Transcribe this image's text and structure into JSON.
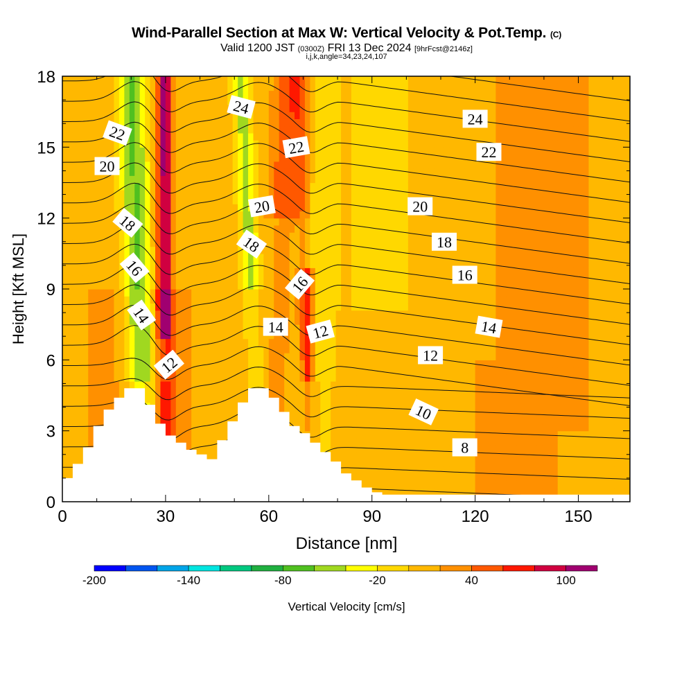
{
  "header": {
    "title": "Wind-Parallel Section at Max W: Vertical Velocity & Pot.Temp.",
    "copyright": "(C)",
    "valid_prefix": "Valid 1200 JST",
    "valid_utc": "(0300Z)",
    "valid_date": "FRI 13 Dec 2024",
    "forecast_tag": "[9hrFcst@2146z]",
    "ijk_line": "i,j,k,angle=34,23,24,107"
  },
  "chart_data": {
    "type": "heatmap",
    "xlabel": "Distance [nm]",
    "ylabel": "Height [Kft MSL]",
    "xlim": [
      0,
      165
    ],
    "ylim": [
      0,
      18
    ],
    "x_ticks": [
      0,
      30,
      60,
      90,
      120,
      150
    ],
    "y_ticks": [
      0,
      3,
      6,
      9,
      12,
      15,
      18
    ],
    "colorbar": {
      "label": "Vertical Velocity [cm/s]",
      "tick_labels": [
        "-200",
        "-140",
        "-80",
        "-20",
        "40",
        "100"
      ],
      "tick_values": [
        -200,
        -140,
        -80,
        -20,
        40,
        100
      ],
      "boundaries": [
        -200,
        -180,
        -160,
        -140,
        -120,
        -100,
        -80,
        -60,
        -40,
        -20,
        0,
        20,
        40,
        60,
        80,
        100,
        120
      ],
      "colors": [
        "#0000ff",
        "#0055f0",
        "#00a5e8",
        "#00e5e0",
        "#00c880",
        "#20b040",
        "#50c020",
        "#a0d820",
        "#ffff00",
        "#ffd800",
        "#ffb800",
        "#ff9000",
        "#ff5800",
        "#ff1800",
        "#d00040",
        "#a00070",
        "#6000a0"
      ]
    },
    "theta_contours": [
      {
        "level": 8,
        "label": "8",
        "label_pos": [
          117,
          2.3
        ],
        "angle": 0
      },
      {
        "level": 10,
        "label": "10",
        "label_pos": [
          105,
          3.8
        ],
        "angle": 25
      },
      {
        "level": 12,
        "label": "12",
        "label_pos": [
          31,
          5.8
        ],
        "angle": -40
      },
      {
        "level": 12,
        "label": "12",
        "label_pos": [
          75,
          7.2
        ],
        "angle": -15
      },
      {
        "level": 12,
        "label": "12",
        "label_pos": [
          107,
          6.2
        ],
        "angle": 0
      },
      {
        "level": 14,
        "label": "14",
        "label_pos": [
          23,
          7.9
        ],
        "angle": 55
      },
      {
        "level": 14,
        "label": "14",
        "label_pos": [
          62,
          7.4
        ],
        "angle": 0
      },
      {
        "level": 14,
        "label": "14",
        "label_pos": [
          124,
          7.4
        ],
        "angle": 10
      },
      {
        "level": 16,
        "label": "16",
        "label_pos": [
          21,
          9.9
        ],
        "angle": 50
      },
      {
        "level": 16,
        "label": "16",
        "label_pos": [
          69,
          9.2
        ],
        "angle": -50
      },
      {
        "level": 16,
        "label": "16",
        "label_pos": [
          117,
          9.6
        ],
        "angle": 0
      },
      {
        "level": 18,
        "label": "18",
        "label_pos": [
          19,
          11.8
        ],
        "angle": 40
      },
      {
        "level": 18,
        "label": "18",
        "label_pos": [
          55,
          10.9
        ],
        "angle": 35
      },
      {
        "level": 18,
        "label": "18",
        "label_pos": [
          111,
          11.0
        ],
        "angle": 0
      },
      {
        "level": 20,
        "label": "20",
        "label_pos": [
          13,
          14.2
        ],
        "angle": 0
      },
      {
        "level": 20,
        "label": "20",
        "label_pos": [
          58,
          12.5
        ],
        "angle": -10
      },
      {
        "level": 20,
        "label": "20",
        "label_pos": [
          104,
          12.5
        ],
        "angle": 0
      },
      {
        "level": 22,
        "label": "22",
        "label_pos": [
          16,
          15.6
        ],
        "angle": 20
      },
      {
        "level": 22,
        "label": "22",
        "label_pos": [
          68,
          15.0
        ],
        "angle": -10
      },
      {
        "level": 22,
        "label": "22",
        "label_pos": [
          124,
          14.8
        ],
        "angle": 0
      },
      {
        "level": 24,
        "label": "24",
        "label_pos": [
          52,
          16.7
        ],
        "angle": 15
      },
      {
        "level": 24,
        "label": "24",
        "label_pos": [
          120,
          16.2
        ],
        "angle": 0
      }
    ],
    "terrain_profile": {
      "x": [
        0,
        3,
        3,
        6,
        6,
        9,
        9,
        12,
        12,
        15,
        15,
        18,
        18,
        21,
        21,
        24,
        24,
        27,
        27,
        30,
        30,
        33,
        33,
        36,
        36,
        39,
        39,
        42,
        42,
        45,
        45,
        48,
        48,
        51,
        51,
        54,
        54,
        57,
        57,
        60,
        60,
        63,
        63,
        66,
        66,
        69,
        69,
        72,
        72,
        75,
        75,
        78,
        78,
        81,
        81,
        84,
        84,
        87,
        87,
        90,
        90,
        93,
        93,
        96,
        96,
        165
      ],
      "y": [
        1.0,
        1.0,
        1.6,
        1.6,
        2.3,
        2.3,
        3.2,
        3.2,
        3.9,
        3.9,
        4.4,
        4.4,
        4.8,
        4.8,
        4.8,
        4.8,
        4.1,
        4.1,
        3.3,
        3.3,
        2.8,
        2.8,
        2.5,
        2.5,
        2.2,
        2.2,
        2.0,
        2.0,
        1.8,
        1.8,
        2.6,
        2.6,
        3.4,
        3.4,
        4.2,
        4.2,
        4.8,
        4.8,
        4.8,
        4.8,
        4.4,
        4.4,
        3.8,
        3.8,
        3.2,
        3.2,
        2.9,
        2.9,
        2.5,
        2.5,
        2.1,
        2.1,
        1.7,
        1.7,
        1.2,
        1.2,
        0.9,
        0.9,
        0.6,
        0.6,
        0.4,
        0.4,
        0.3,
        0.3,
        0.3,
        0.3
      ]
    }
  }
}
